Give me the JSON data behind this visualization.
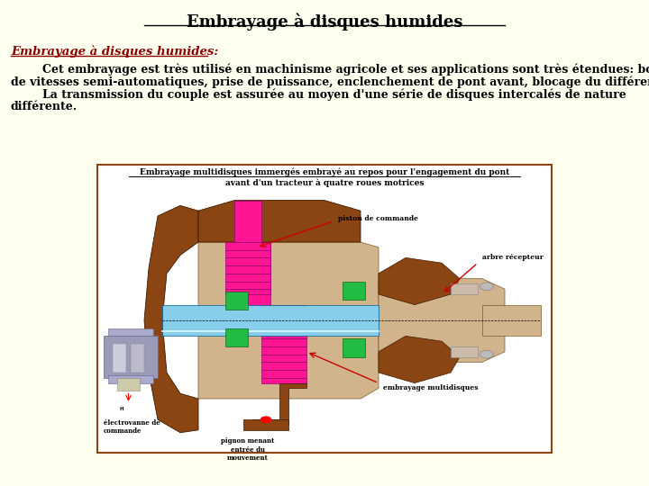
{
  "bg_color": "#FFFFF0",
  "title": "Embrayage à disques humides",
  "title_fontsize": 13,
  "title_color": "#000000",
  "subtitle": "Embrayage à disques humides:",
  "subtitle_fontsize": 9.5,
  "subtitle_color": "#8B0000",
  "body_line1": "        Cet embrayage est très utilisé en machinisme agricole et ses applications sont très étendues: boîtes",
  "body_line2": "de vitesses semi-automatiques, prise de puissance, enclenchement de pont avant, blocage du différentiel ...",
  "body_line3": "        La transmission du couple est assurée au moyen d'une série de disques intercalés de nature",
  "body_line4": "différente.",
  "body_fontsize": 9,
  "body_color": "#000000",
  "caption_line1": "Embrayage multidisques immergés embrayé au repos pour l'engagement du pont",
  "caption_line2": "avant d'un tracteur à quatre roues motrices",
  "caption_fontsize": 6.5,
  "box_border_color": "#8B4513",
  "label_piston": "piston de commande",
  "label_arbre": "arbre récepteur",
  "label_embrayage": "embrayage multidisques",
  "label_electrovanne": "électrovanne de\ncommande",
  "label_pignon": "pignon menant\nentrée du\nmouvement",
  "housing_color": "#8B4513",
  "light_tan": "#D2B48C",
  "pink_red": "#FF1493",
  "cyan_light": "#87CEEB",
  "green_seal": "#22BB44",
  "purple_gray": "#9B9BB8",
  "white": "#FFFFFF"
}
